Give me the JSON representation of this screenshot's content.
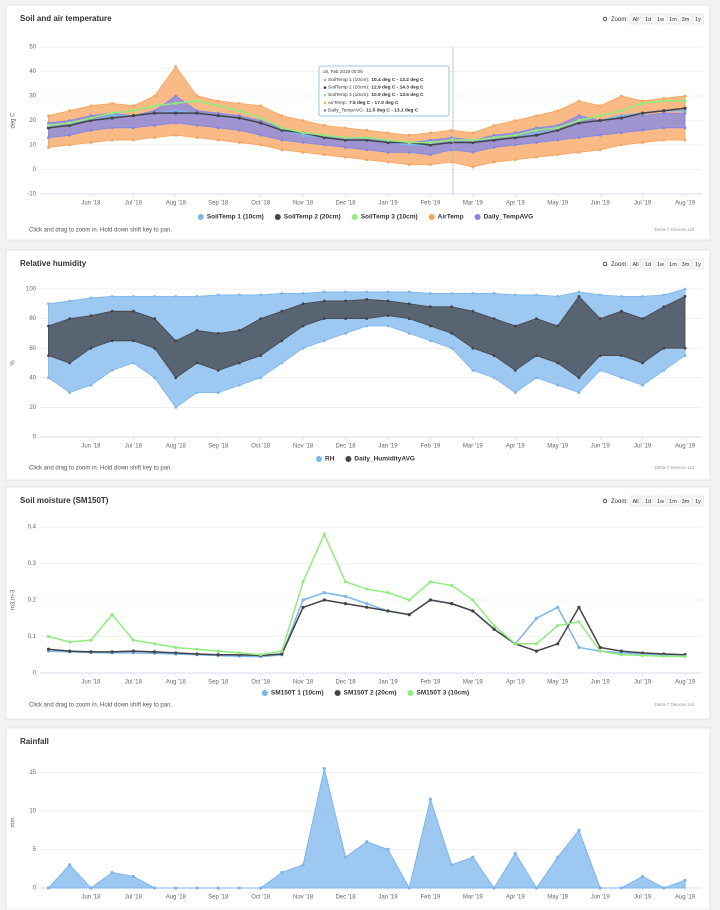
{
  "chart_data": [
    {
      "type": "line",
      "title": "Soil and air temperature",
      "y_label": "deg C",
      "zoom_label": "Zoom:",
      "zoom_buttons": [
        "All",
        "1d",
        "1w",
        "1m",
        "3m",
        "1y"
      ],
      "note": "Click and drag to zoom in. Hold down shift key to pan.",
      "credits": "Delta-T Devices Ltd",
      "xlim": [
        -0.2,
        15.4
      ],
      "xticks": [
        {
          "value": 1,
          "label": "Jun '18"
        },
        {
          "value": 2,
          "label": "Jul '18"
        },
        {
          "value": 3,
          "label": "Aug '18"
        },
        {
          "value": 4,
          "label": "Sep '18"
        },
        {
          "value": 5,
          "label": "Oct '18"
        },
        {
          "value": 6,
          "label": "Nov '18"
        },
        {
          "value": 7,
          "label": "Dec '18"
        },
        {
          "value": 8,
          "label": "Jan '19"
        },
        {
          "value": 9,
          "label": "Feb '19"
        },
        {
          "value": 10,
          "label": "Mar '19"
        },
        {
          "value": 11,
          "label": "Apr '19"
        },
        {
          "value": 12,
          "label": "May '19"
        },
        {
          "value": 13,
          "label": "Jun '19"
        },
        {
          "value": 14,
          "label": "Jul '19"
        },
        {
          "value": 15,
          "label": "Aug '19"
        }
      ],
      "ylim": [
        -10,
        50
      ],
      "yticks": [
        -10,
        0,
        10,
        20,
        30,
        40,
        50
      ],
      "grid": true,
      "x": [
        0,
        0.5,
        1,
        1.5,
        2,
        2.5,
        3,
        3.5,
        4,
        4.5,
        5,
        5.5,
        6,
        6.5,
        7,
        7.5,
        8,
        8.5,
        9,
        9.5,
        10,
        10.5,
        11,
        11.5,
        12,
        12.5,
        13,
        13.5,
        14,
        14.5,
        15
      ],
      "series": [
        {
          "name": "SoilTemp 1 (10cm)",
          "color": "#7cb5ec",
          "values": [
            17,
            18,
            20,
            22,
            22,
            23,
            24,
            23,
            22,
            21,
            19,
            16,
            14,
            13,
            12,
            12,
            11,
            10,
            10,
            11,
            11,
            12,
            13,
            15,
            16,
            19,
            20,
            22,
            23,
            24,
            24
          ]
        },
        {
          "name": "SoilTemp 2 (20cm)",
          "color": "#434348",
          "values": [
            17,
            18,
            20,
            21,
            22,
            23,
            23,
            23,
            22,
            21,
            19,
            16,
            15,
            13,
            12,
            12,
            11,
            11,
            10,
            11,
            11,
            12,
            13,
            14,
            16,
            19,
            20,
            21,
            23,
            24,
            25
          ]
        },
        {
          "name": "SoilTemp 3 (10cm)",
          "color": "#90ed7d",
          "values": [
            18,
            19,
            21,
            23,
            24,
            26,
            27,
            28,
            26,
            24,
            21,
            17,
            15,
            14,
            13,
            13,
            12,
            11,
            11,
            12,
            12,
            13,
            14,
            16,
            17,
            20,
            22,
            24,
            27,
            28,
            28
          ]
        },
        {
          "name": "AirTemp",
          "color": "#f7a35c",
          "low": [
            9,
            10,
            11,
            12,
            12,
            13,
            14,
            13,
            12,
            11,
            10,
            8,
            7,
            6,
            5,
            4,
            3,
            2,
            2,
            3,
            1,
            3,
            4,
            5,
            6,
            7,
            8,
            10,
            11,
            12,
            12
          ],
          "high": [
            22,
            24,
            26,
            27,
            26,
            30,
            42,
            30,
            28,
            27,
            26,
            22,
            20,
            18,
            17,
            16,
            15,
            14,
            15,
            16,
            15,
            18,
            20,
            22,
            24,
            28,
            26,
            30,
            28,
            29,
            30
          ]
        },
        {
          "name": "Daily_TempAVG",
          "color": "#8085e9",
          "low": [
            13,
            14,
            16,
            17,
            17,
            18,
            19,
            18,
            17,
            16,
            14,
            12,
            11,
            10,
            9,
            8,
            7,
            7,
            6,
            8,
            7,
            9,
            10,
            11,
            12,
            13,
            14,
            15,
            16,
            17,
            17
          ],
          "high": [
            19,
            20,
            22,
            23,
            22,
            24,
            30,
            24,
            23,
            22,
            20,
            17,
            15,
            14,
            13,
            13,
            12,
            11,
            12,
            13,
            12,
            14,
            15,
            17,
            18,
            22,
            20,
            22,
            22,
            23,
            23
          ]
        }
      ],
      "tooltip": {
        "header": "16. Feb 2019 00:00",
        "items": [
          {
            "name": "SoilTemp 1 (10cm):",
            "value": "10.4 deg C - 13.2 deg C"
          },
          {
            "name": "SoilTemp 2 (20cm):",
            "value": "12.9 deg C - 14.3 deg C"
          },
          {
            "name": "SoilTemp 3 (10cm):",
            "value": "10.9 deg C - 13.5 deg C"
          },
          {
            "name": "AirTemp:",
            "value": "7.5 deg C - 17.0 deg C"
          },
          {
            "name": "Daily_TempAVG:",
            "value": "11.5 deg C - 13.1 deg C"
          }
        ]
      }
    },
    {
      "type": "line",
      "title": "Relative humidity",
      "y_label": "%",
      "zoom_label": "Zoom:",
      "zoom_buttons": [
        "All",
        "1d",
        "1w",
        "1m",
        "3m",
        "1y"
      ],
      "note": "Click and drag to zoom in. Hold down shift key to pan.",
      "credits": "Delta-T Devices Ltd",
      "xlim": [
        -0.2,
        15.4
      ],
      "xticks": [
        {
          "value": 1,
          "label": "Jun '18"
        },
        {
          "value": 2,
          "label": "Jul '18"
        },
        {
          "value": 3,
          "label": "Aug '18"
        },
        {
          "value": 4,
          "label": "Sep '18"
        },
        {
          "value": 5,
          "label": "Oct '18"
        },
        {
          "value": 6,
          "label": "Nov '18"
        },
        {
          "value": 7,
          "label": "Dec '18"
        },
        {
          "value": 8,
          "label": "Jan '19"
        },
        {
          "value": 9,
          "label": "Feb '19"
        },
        {
          "value": 10,
          "label": "Mar '19"
        },
        {
          "value": 11,
          "label": "Apr '19"
        },
        {
          "value": 12,
          "label": "May '19"
        },
        {
          "value": 13,
          "label": "Jun '19"
        },
        {
          "value": 14,
          "label": "Jul '19"
        },
        {
          "value": 15,
          "label": "Aug '19"
        }
      ],
      "ylim": [
        0,
        100
      ],
      "yticks": [
        0,
        20,
        40,
        60,
        80,
        100
      ],
      "grid": true,
      "x": [
        0,
        0.5,
        1,
        1.5,
        2,
        2.5,
        3,
        3.5,
        4,
        4.5,
        5,
        5.5,
        6,
        6.5,
        7,
        7.5,
        8,
        8.5,
        9,
        9.5,
        10,
        10.5,
        11,
        11.5,
        12,
        12.5,
        13,
        13.5,
        14,
        14.5,
        15
      ],
      "series": [
        {
          "name": "RH",
          "color": "#7cb5ec",
          "low": [
            40,
            30,
            35,
            45,
            50,
            40,
            20,
            30,
            30,
            35,
            40,
            50,
            60,
            65,
            70,
            75,
            75,
            70,
            65,
            60,
            45,
            40,
            30,
            40,
            35,
            30,
            45,
            40,
            35,
            45,
            55
          ],
          "high": [
            90,
            92,
            94,
            95,
            95,
            95,
            95,
            95,
            96,
            96,
            96,
            97,
            97,
            98,
            98,
            98,
            98,
            98,
            97,
            97,
            97,
            97,
            96,
            96,
            95,
            98,
            96,
            95,
            95,
            96,
            100
          ]
        },
        {
          "name": "Daily_HumidityAVG",
          "color": "#434348",
          "low": [
            55,
            50,
            60,
            65,
            65,
            60,
            40,
            50,
            45,
            50,
            55,
            65,
            75,
            80,
            80,
            80,
            82,
            80,
            75,
            70,
            60,
            55,
            45,
            55,
            50,
            40,
            55,
            55,
            50,
            60,
            60
          ],
          "high": [
            75,
            80,
            82,
            85,
            85,
            80,
            65,
            72,
            70,
            72,
            80,
            85,
            90,
            92,
            92,
            93,
            92,
            90,
            88,
            88,
            85,
            80,
            75,
            80,
            75,
            95,
            80,
            85,
            80,
            88,
            95
          ]
        }
      ]
    },
    {
      "type": "line",
      "title": "Soil moisture (SM150T)",
      "y_label": "m3.m-3",
      "zoom_label": "Zoom:",
      "zoom_buttons": [
        "All",
        "1d",
        "1w",
        "1m",
        "3m",
        "1y"
      ],
      "note": "Click and drag to zoom in. Hold down shift key to pan.",
      "credits": "Delta-T Devices Ltd",
      "xlim": [
        -0.2,
        15.4
      ],
      "xticks": [
        {
          "value": 1,
          "label": "Jun '18"
        },
        {
          "value": 2,
          "label": "Jul '18"
        },
        {
          "value": 3,
          "label": "Aug '18"
        },
        {
          "value": 4,
          "label": "Sep '18"
        },
        {
          "value": 5,
          "label": "Oct '18"
        },
        {
          "value": 6,
          "label": "Nov '18"
        },
        {
          "value": 7,
          "label": "Dec '18"
        },
        {
          "value": 8,
          "label": "Jan '19"
        },
        {
          "value": 9,
          "label": "Feb '19"
        },
        {
          "value": 10,
          "label": "Mar '19"
        },
        {
          "value": 11,
          "label": "Apr '19"
        },
        {
          "value": 12,
          "label": "May '19"
        },
        {
          "value": 13,
          "label": "Jun '19"
        },
        {
          "value": 14,
          "label": "Jul '19"
        },
        {
          "value": 15,
          "label": "Aug '19"
        }
      ],
      "ylim": [
        0,
        0.4
      ],
      "yticks": [
        0,
        0.1,
        0.2,
        0.3,
        0.4
      ],
      "grid": true,
      "x": [
        0,
        0.5,
        1,
        1.5,
        2,
        2.5,
        3,
        3.5,
        4,
        4.5,
        5,
        5.5,
        6,
        6.5,
        7,
        7.5,
        8,
        8.5,
        9,
        9.5,
        10,
        10.5,
        11,
        11.5,
        12,
        12.5,
        13,
        13.5,
        14,
        14.5,
        15
      ],
      "series": [
        {
          "name": "SM150T 1 (10cm)",
          "color": "#7cb5ec",
          "values": [
            0.06,
            0.058,
            0.056,
            0.055,
            0.055,
            0.054,
            0.052,
            0.05,
            0.048,
            0.046,
            0.045,
            0.05,
            0.2,
            0.22,
            0.21,
            0.19,
            0.17,
            0.16,
            0.2,
            0.19,
            0.17,
            0.12,
            0.08,
            0.15,
            0.18,
            0.07,
            0.06,
            0.055,
            0.052,
            0.05,
            0.05
          ]
        },
        {
          "name": "SM150T 2 (20cm)",
          "color": "#434348",
          "values": [
            0.065,
            0.06,
            0.058,
            0.058,
            0.06,
            0.058,
            0.055,
            0.052,
            0.05,
            0.05,
            0.048,
            0.052,
            0.18,
            0.2,
            0.19,
            0.18,
            0.17,
            0.16,
            0.2,
            0.19,
            0.17,
            0.12,
            0.08,
            0.06,
            0.08,
            0.18,
            0.07,
            0.06,
            0.055,
            0.052,
            0.05
          ]
        },
        {
          "name": "SM150T 3 (10cm)",
          "color": "#90ed7d",
          "values": [
            0.1,
            0.085,
            0.09,
            0.16,
            0.09,
            0.08,
            0.07,
            0.065,
            0.06,
            0.055,
            0.05,
            0.06,
            0.25,
            0.38,
            0.25,
            0.23,
            0.22,
            0.2,
            0.25,
            0.24,
            0.2,
            0.13,
            0.08,
            0.08,
            0.13,
            0.14,
            0.06,
            0.05,
            0.048,
            0.046,
            0.045
          ]
        }
      ]
    },
    {
      "type": "area",
      "title": "Rainfall",
      "y_label": "mm",
      "xlim": [
        -0.2,
        15.4
      ],
      "xticks": [
        {
          "value": 1,
          "label": "Jun '18"
        },
        {
          "value": 2,
          "label": "Jul '18"
        },
        {
          "value": 3,
          "label": "Aug '18"
        },
        {
          "value": 4,
          "label": "Sep '18"
        },
        {
          "value": 5,
          "label": "Oct '18"
        },
        {
          "value": 6,
          "label": "Nov '18"
        },
        {
          "value": 7,
          "label": "Dec '18"
        },
        {
          "value": 8,
          "label": "Jan '19"
        },
        {
          "value": 9,
          "label": "Feb '19"
        },
        {
          "value": 10,
          "label": "Mar '19"
        },
        {
          "value": 11,
          "label": "Apr '19"
        },
        {
          "value": 12,
          "label": "May '19"
        },
        {
          "value": 13,
          "label": "Jun '19"
        },
        {
          "value": 14,
          "label": "Jul '19"
        },
        {
          "value": 15,
          "label": "Aug '19"
        }
      ],
      "ylim": [
        0,
        17
      ],
      "yticks": [
        0,
        5,
        10,
        15
      ],
      "grid": true,
      "x": [
        0,
        0.5,
        1,
        1.5,
        2,
        2.5,
        3,
        3.5,
        4,
        4.5,
        5,
        5.5,
        6,
        6.5,
        7,
        7.5,
        8,
        8.5,
        9,
        9.5,
        10,
        10.5,
        11,
        11.5,
        12,
        12.5,
        13,
        13.5,
        14,
        14.5,
        15
      ],
      "series": [
        {
          "color": "#7cb5ec",
          "values": [
            0,
            3,
            0,
            2,
            1.5,
            0,
            0,
            0,
            0,
            0,
            0,
            2,
            3,
            15.5,
            4,
            6,
            5,
            0,
            11.5,
            3,
            4,
            0,
            4.5,
            0,
            4,
            7.5,
            0,
            0,
            1.5,
            0,
            1
          ]
        }
      ]
    }
  ]
}
